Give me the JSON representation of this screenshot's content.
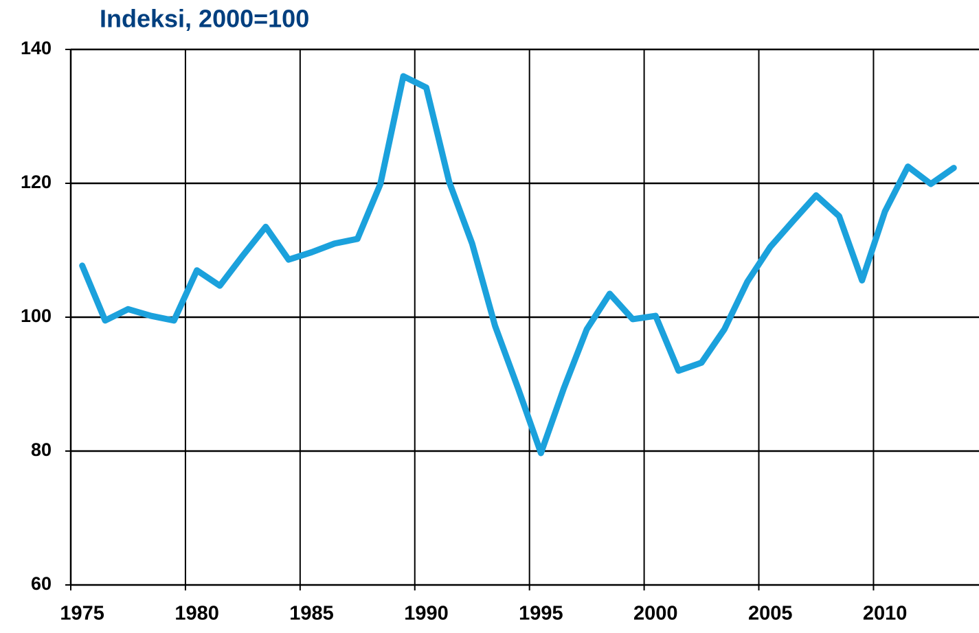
{
  "chart_data": {
    "type": "line",
    "title": "Indeksi, 2000=100",
    "x": [
      1975,
      1976,
      1977,
      1978,
      1979,
      1980,
      1981,
      1982,
      1983,
      1984,
      1985,
      1986,
      1987,
      1988,
      1989,
      1990,
      1991,
      1992,
      1993,
      1994,
      1995,
      1996,
      1997,
      1998,
      1999,
      2000,
      2001,
      2002,
      2003,
      2004,
      2005,
      2006,
      2007,
      2008,
      2009,
      2010,
      2011,
      2012,
      2013
    ],
    "series": [
      {
        "name": "Indeksi",
        "color": "#1ba1dc",
        "values": [
          107.7,
          99.5,
          101.2,
          100.2,
          99.5,
          107,
          104.7,
          109.2,
          113.5,
          108.6,
          109.7,
          111,
          111.7,
          119.9,
          136,
          134.3,
          120.2,
          111,
          98.7,
          89.4,
          79.7,
          89.4,
          98.2,
          103.5,
          99.7,
          100.2,
          92,
          93.2,
          98.2,
          105.3,
          110.5,
          114.4,
          118.2,
          115.1,
          105.5,
          115.8,
          122.5,
          119.9,
          122.3
        ]
      }
    ],
    "xlim": [
      1974.5,
      2014.1
    ],
    "xticks": [
      1975,
      1980,
      1985,
      1990,
      1995,
      2000,
      2005,
      2010
    ],
    "ylim": [
      60,
      140
    ],
    "yticks": [
      60,
      80,
      100,
      120,
      140
    ],
    "grid": true
  }
}
